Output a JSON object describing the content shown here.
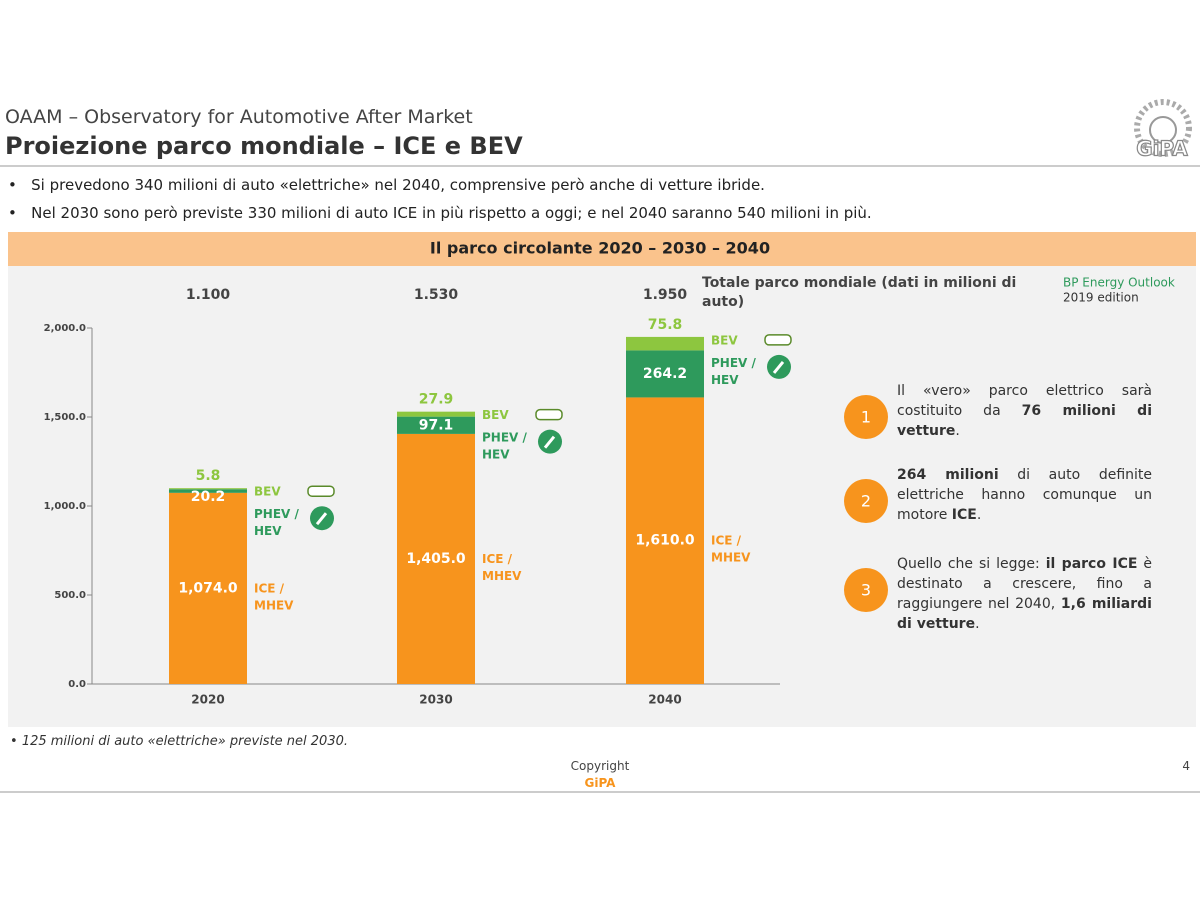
{
  "header": {
    "subtitle": "OAAM – Observatory for Automotive After Market",
    "title": "Proiezione parco mondiale – ICE e BEV",
    "logo": "GiPA"
  },
  "bullets": [
    "Si prevedono 340 milioni di auto «elettriche» nel 2040, comprensive però anche di vetture ibride.",
    "Nel 2030 sono però previste 330 milioni di auto ICE in più rispetto a oggi; e nel 2040 saranno 540 milioni in più."
  ],
  "chart_data": {
    "type": "stacked_bar",
    "title": "Il parco circolante 2020 – 2030 – 2040",
    "axis_note": "Totale parco mondiale (dati in milioni di auto)",
    "source": [
      "BP Energy Outlook",
      "2019 edition"
    ],
    "categories": [
      "2020",
      "2030",
      "2040"
    ],
    "totals": [
      {
        "value": 1100,
        "label": "1.100"
      },
      {
        "value": 1530,
        "label": "1.530"
      },
      {
        "value": 1950,
        "label": "1.950"
      }
    ],
    "series": [
      {
        "name": "ICE / MHEV",
        "color": "#f7941d",
        "values": [
          1074.0,
          1405.0,
          1610.0
        ],
        "value_labels": [
          "1,074.0",
          "1,405.0",
          "1,610.0"
        ]
      },
      {
        "name": "PHEV / HEV",
        "color": "#2e9a5c",
        "values": [
          20.2,
          97.1,
          264.2
        ]
      },
      {
        "name": "BEV",
        "color": "#8dc63f",
        "values": [
          5.8,
          27.9,
          75.8
        ]
      }
    ],
    "ylim": [
      0,
      2000
    ],
    "yticks": [
      {
        "value": 0,
        "label": "0.0"
      },
      {
        "value": 500,
        "label": "500.0"
      },
      {
        "value": 1000,
        "label": "1,000.0"
      },
      {
        "value": 1500,
        "label": "1,500.0"
      },
      {
        "value": 2000,
        "label": "2,000.0"
      }
    ]
  },
  "callouts": [
    {
      "number": "1",
      "parts": [
        {
          "text": "Il «vero» parco elettrico sarà costituito da "
        },
        {
          "text": "76 milioni di vetture",
          "bold": true
        },
        {
          "text": "."
        }
      ]
    },
    {
      "number": "2",
      "parts": [
        {
          "text": "264 milioni",
          "bold": true
        },
        {
          "text": " di auto definite elettriche hanno comunque un motore "
        },
        {
          "text": "ICE",
          "bold": true
        },
        {
          "text": "."
        }
      ]
    },
    {
      "number": "3",
      "parts": [
        {
          "text": "Quello che si legge: "
        },
        {
          "text": "il parco ICE",
          "bold": true
        },
        {
          "text": " è destinato a crescere, fino a raggiungere nel 2040, "
        },
        {
          "text": "1,6 miliardi di vetture",
          "bold": true
        },
        {
          "text": "."
        }
      ]
    }
  ],
  "footnote": "125 milioni di auto «elettriche» previste nel 2030.",
  "footer": {
    "copyright": "Copyright",
    "brand": "GiPA",
    "page": "4"
  }
}
